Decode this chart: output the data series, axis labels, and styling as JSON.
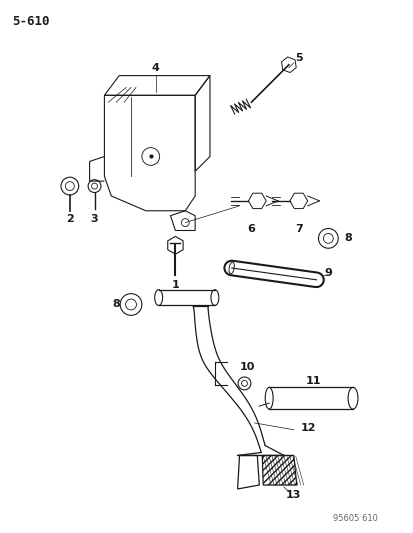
{
  "title": "5-610",
  "watermark": "95605 610",
  "background_color": "#ffffff",
  "line_color": "#1a1a1a",
  "fig_width": 4.14,
  "fig_height": 5.33,
  "dpi": 100
}
